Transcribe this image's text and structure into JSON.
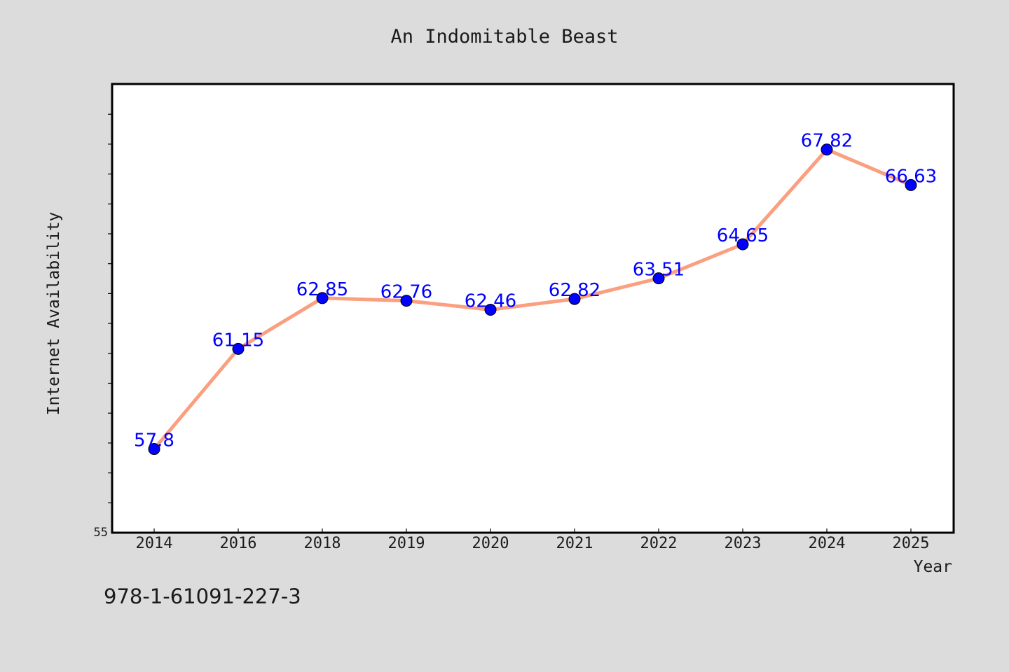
{
  "colors": {
    "background": "#dcdcdc",
    "plot_background": "#ffffff",
    "plot_border": "#000000",
    "line": "#fa9f7f",
    "marker": "#0000ff",
    "data_label": "#0000ff",
    "text": "#1a1a1a"
  },
  "footer_text": "978-1-61091-227-3",
  "chart_data": {
    "type": "line",
    "title": "An Indomitable Beast",
    "xlabel": "Year",
    "ylabel": "Internet Availability",
    "categories": [
      "2014",
      "2016",
      "2018",
      "2019",
      "2020",
      "2021",
      "2022",
      "2023",
      "2024",
      "2025"
    ],
    "series": [
      {
        "values": [
          57.8,
          61.15,
          62.85,
          62.76,
          62.46,
          62.82,
          63.51,
          64.65,
          67.82,
          66.63
        ],
        "data_labels": [
          "57.8",
          "61.15",
          "62.85",
          "62.76",
          "62.46",
          "62.82",
          "63.51",
          "64.65",
          "67.82",
          "66.63"
        ]
      }
    ],
    "ylim": [
      55,
      70
    ],
    "y_tick_labels": [
      {
        "value": 55,
        "label": "55"
      }
    ],
    "y_minor_tick_step": 1,
    "grid": false,
    "legend": false,
    "markers": true
  }
}
